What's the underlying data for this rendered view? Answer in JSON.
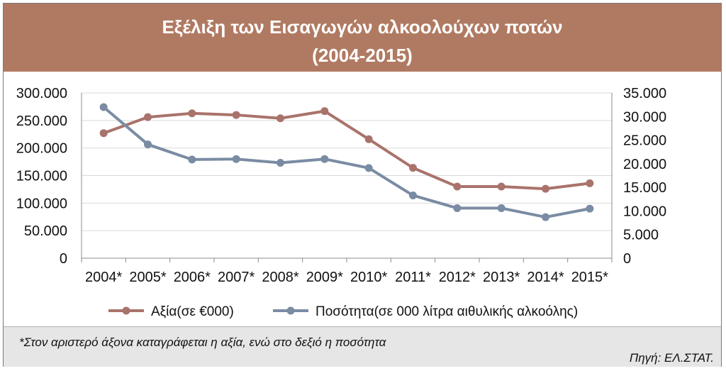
{
  "header": {
    "title": "Εξέλιξη των Εισαγωγών αλκοολούχων ποτών",
    "subtitle": "(2004-2015)"
  },
  "footer": {
    "note": "*Στον αριστερό άξονα καταγράφεται η αξία, ενώ στο δεξιό η ποσότητα",
    "source": "Πηγή: ΕΛ.ΣΤΑΤ."
  },
  "colors": {
    "header_bg": "#b07a62",
    "series_value": "#a9736b",
    "series_quantity": "#7a8ca3",
    "footer_bg": "#e6e6e6"
  },
  "chart_data": {
    "type": "line",
    "categories": [
      "2004*",
      "2005*",
      "2006*",
      "2007*",
      "2008*",
      "2009*",
      "2010*",
      "2011*",
      "2012*",
      "2013*",
      "2014*",
      "2015*"
    ],
    "series": [
      {
        "name": "Αξία(σε €000)",
        "axis": "left",
        "values": [
          227000,
          256000,
          263000,
          260000,
          254000,
          267000,
          216000,
          164000,
          130000,
          130000,
          126000,
          136000
        ]
      },
      {
        "name": "Ποσότητα(σε 000 λίτρα αιθυλικής αλκοόλης)",
        "axis": "right",
        "values": [
          32000,
          24100,
          20900,
          21000,
          20200,
          21000,
          19100,
          13300,
          10600,
          10600,
          8700,
          10500
        ]
      }
    ],
    "left_axis": {
      "min": 0,
      "max": 300000,
      "ticks": [
        "0",
        "50.000",
        "100.000",
        "150.000",
        "200.000",
        "250.000",
        "300.000"
      ]
    },
    "right_axis": {
      "min": 0,
      "max": 35000,
      "ticks": [
        "0",
        "5.000",
        "10.000",
        "15.000",
        "20.000",
        "25.000",
        "30.000",
        "35.000"
      ]
    },
    "grid": true,
    "legend": "bottom"
  }
}
